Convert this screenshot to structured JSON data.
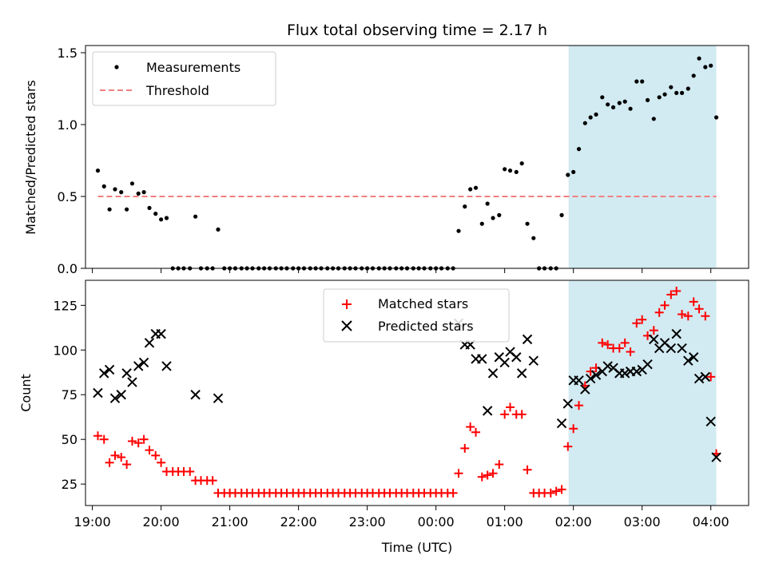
{
  "title": "Flux total observing time = 2.17 h",
  "colors": {
    "measurement": "#000000",
    "threshold": "#f08080",
    "matched": "#ff0000",
    "predicted": "#000000",
    "shade": "#add8e6"
  },
  "chart_data": [
    {
      "type": "scatter",
      "panel": "top",
      "title": "Flux total observing time = 2.17 h",
      "xlabel": "",
      "ylabel": "Matched/Predicted stars",
      "xlim": [
        18.9,
        28.55
      ],
      "ylim": [
        0,
        1.55
      ],
      "yticks": [
        0.0,
        0.5,
        1.0,
        1.5
      ],
      "ytick_labels": [
        "0.0",
        "0.5",
        "1.0",
        "1.5"
      ],
      "shaded_region": [
        25.93,
        28.08
      ],
      "legend": {
        "position": "top-left",
        "entries": [
          "Measurements",
          "Threshold"
        ]
      },
      "threshold": {
        "name": "Threshold",
        "y": 0.5,
        "x_range": [
          19.08,
          28.08
        ]
      },
      "series": [
        {
          "name": "Measurements",
          "marker": "dot",
          "x": [
            19.08,
            19.17,
            19.25,
            19.33,
            19.42,
            19.5,
            19.58,
            19.67,
            19.75,
            19.83,
            19.92,
            20.0,
            20.08,
            20.17,
            20.25,
            20.33,
            20.42,
            20.5,
            20.58,
            20.67,
            20.75,
            20.83,
            20.92,
            21.0,
            21.08,
            21.17,
            21.25,
            21.33,
            21.42,
            21.5,
            21.58,
            21.67,
            21.75,
            21.83,
            21.92,
            22.0,
            22.08,
            22.17,
            22.25,
            22.33,
            22.42,
            22.5,
            22.58,
            22.67,
            22.75,
            22.83,
            22.92,
            23.0,
            23.08,
            23.17,
            23.25,
            23.33,
            23.42,
            23.5,
            23.58,
            23.67,
            23.75,
            23.83,
            23.92,
            24.0,
            24.08,
            24.17,
            24.25,
            24.33,
            24.42,
            24.5,
            24.58,
            24.67,
            24.75,
            24.83,
            24.92,
            25.0,
            25.08,
            25.17,
            25.25,
            25.33,
            25.42,
            25.5,
            25.58,
            25.67,
            25.75,
            25.83,
            25.92,
            26.0,
            26.08,
            26.17,
            26.25,
            26.33,
            26.42,
            26.5,
            26.58,
            26.67,
            26.75,
            26.83,
            26.92,
            27.0,
            27.08,
            27.17,
            27.25,
            27.33,
            27.42,
            27.5,
            27.58,
            27.67,
            27.75,
            27.83,
            27.92,
            28.0,
            28.08
          ],
          "y": [
            0.68,
            0.57,
            0.41,
            0.55,
            0.53,
            0.41,
            0.59,
            0.52,
            0.53,
            0.42,
            0.38,
            0.34,
            0.35,
            0.0,
            0.0,
            0.0,
            0.0,
            0.36,
            0.0,
            0.0,
            0.0,
            0.27,
            0.0,
            0.0,
            0.0,
            0.0,
            0.0,
            0.0,
            0.0,
            0.0,
            0.0,
            0.0,
            0.0,
            0.0,
            0.0,
            0.0,
            0.0,
            0.0,
            0.0,
            0.0,
            0.0,
            0.0,
            0.0,
            0.0,
            0.0,
            0.0,
            0.0,
            0.0,
            0.0,
            0.0,
            0.0,
            0.0,
            0.0,
            0.0,
            0.0,
            0.0,
            0.0,
            0.0,
            0.0,
            0.0,
            0.0,
            0.0,
            0.0,
            0.26,
            0.43,
            0.55,
            0.56,
            0.31,
            0.45,
            0.35,
            0.37,
            0.69,
            0.68,
            0.67,
            0.73,
            0.31,
            0.21,
            0.0,
            0.0,
            0.0,
            0.0,
            0.37,
            0.65,
            0.67,
            0.83,
            1.01,
            1.05,
            1.07,
            1.19,
            1.14,
            1.12,
            1.15,
            1.16,
            1.11,
            1.3,
            1.3,
            1.17,
            1.04,
            1.19,
            1.21,
            1.26,
            1.22,
            1.22,
            1.25,
            1.34,
            1.46,
            1.4,
            1.41,
            1.05
          ]
        }
      ]
    },
    {
      "type": "scatter",
      "panel": "bottom",
      "xlabel": "Time (UTC)",
      "ylabel": "Count",
      "xlim": [
        18.9,
        28.55
      ],
      "ylim": [
        13,
        139
      ],
      "yticks": [
        25,
        50,
        75,
        100,
        125
      ],
      "ytick_labels": [
        "25",
        "50",
        "75",
        "100",
        "125"
      ],
      "xticks": [
        19,
        20,
        21,
        22,
        23,
        24,
        25,
        26,
        27,
        28
      ],
      "xtick_labels": [
        "19:00",
        "20:00",
        "21:00",
        "22:00",
        "23:00",
        "00:00",
        "01:00",
        "02:00",
        "03:00",
        "04:00"
      ],
      "shaded_region": [
        25.93,
        28.08
      ],
      "legend": {
        "position": "top-center",
        "entries": [
          "Matched stars",
          "Predicted stars"
        ]
      },
      "series": [
        {
          "name": "Matched stars",
          "marker": "plus",
          "x": [
            19.08,
            19.17,
            19.25,
            19.33,
            19.42,
            19.5,
            19.58,
            19.67,
            19.75,
            19.83,
            19.92,
            20.0,
            20.08,
            20.17,
            20.25,
            20.33,
            20.42,
            20.5,
            20.58,
            20.67,
            20.75,
            20.83,
            20.92,
            21.0,
            21.08,
            21.17,
            21.25,
            21.33,
            21.42,
            21.5,
            21.58,
            21.67,
            21.75,
            21.83,
            21.92,
            22.0,
            22.08,
            22.17,
            22.25,
            22.33,
            22.42,
            22.5,
            22.58,
            22.67,
            22.75,
            22.83,
            22.92,
            23.0,
            23.08,
            23.17,
            23.25,
            23.33,
            23.42,
            23.5,
            23.58,
            23.67,
            23.75,
            23.83,
            23.92,
            24.0,
            24.08,
            24.17,
            24.25,
            24.33,
            24.42,
            24.5,
            24.58,
            24.67,
            24.75,
            24.83,
            24.92,
            25.0,
            25.08,
            25.17,
            25.25,
            25.33,
            25.42,
            25.5,
            25.58,
            25.67,
            25.75,
            25.83,
            25.92,
            26.0,
            26.08,
            26.17,
            26.25,
            26.33,
            26.42,
            26.5,
            26.58,
            26.67,
            26.75,
            26.83,
            26.92,
            27.0,
            27.08,
            27.17,
            27.25,
            27.33,
            27.42,
            27.5,
            27.58,
            27.67,
            27.75,
            27.83,
            27.92,
            28.0,
            28.08
          ],
          "y": [
            52,
            50,
            37,
            41,
            40,
            36,
            49,
            48,
            50,
            44,
            41,
            37,
            32,
            32,
            32,
            32,
            32,
            27,
            27,
            27,
            27,
            20,
            20,
            20,
            20,
            20,
            20,
            20,
            20,
            20,
            20,
            20,
            20,
            20,
            20,
            20,
            20,
            20,
            20,
            20,
            20,
            20,
            20,
            20,
            20,
            20,
            20,
            20,
            20,
            20,
            20,
            20,
            20,
            20,
            20,
            20,
            20,
            20,
            20,
            20,
            20,
            20,
            20,
            31,
            45,
            57,
            54,
            29,
            30,
            31,
            36,
            64,
            68,
            64,
            64,
            33,
            20,
            20,
            20,
            20,
            21,
            22,
            46,
            56,
            69,
            80,
            88,
            90,
            104,
            103,
            101,
            101,
            104,
            99,
            115,
            117,
            108,
            111,
            121,
            125,
            131,
            133,
            120,
            119,
            127,
            123,
            119,
            85,
            42
          ]
        },
        {
          "name": "Predicted stars",
          "marker": "x",
          "x": [
            19.08,
            19.17,
            19.25,
            19.33,
            19.42,
            19.5,
            19.58,
            19.67,
            19.75,
            19.83,
            19.92,
            20.0,
            20.08,
            20.5,
            20.83,
            24.33,
            24.42,
            24.5,
            24.58,
            24.67,
            24.75,
            24.83,
            24.92,
            25.0,
            25.08,
            25.17,
            25.25,
            25.33,
            25.42,
            25.83,
            25.92,
            26.0,
            26.08,
            26.17,
            26.25,
            26.33,
            26.42,
            26.5,
            26.58,
            26.67,
            26.75,
            26.83,
            26.92,
            27.0,
            27.08,
            27.17,
            27.25,
            27.33,
            27.42,
            27.5,
            27.58,
            27.67,
            27.75,
            27.83,
            27.92,
            28.0,
            28.08
          ],
          "y": [
            76,
            87,
            89,
            73,
            75,
            87,
            82,
            91,
            93,
            104,
            109,
            109,
            91,
            75,
            73,
            115,
            103,
            103,
            95,
            95,
            66,
            87,
            96,
            93,
            99,
            96,
            87,
            106,
            94,
            59,
            70,
            83,
            83,
            78,
            84,
            86,
            88,
            91,
            90,
            87,
            87,
            88,
            88,
            89,
            92,
            106,
            101,
            104,
            101,
            109,
            101,
            94,
            96,
            84,
            85,
            60,
            40
          ]
        }
      ]
    }
  ]
}
